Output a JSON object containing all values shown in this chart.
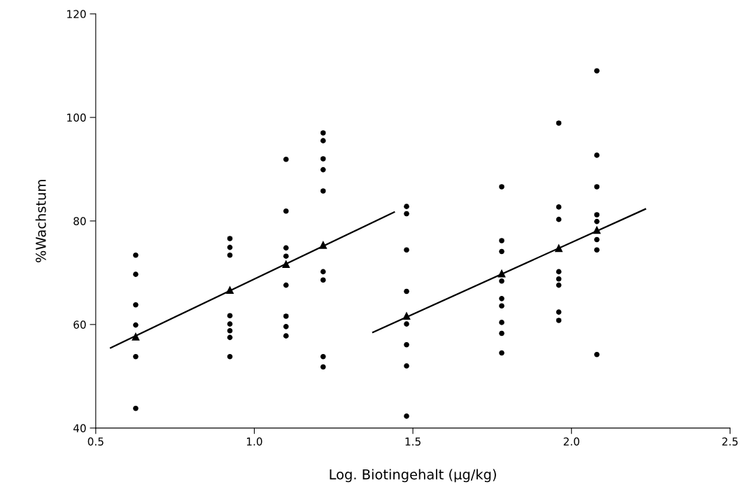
{
  "chart_data": {
    "type": "scatter",
    "xlabel": "Log. Biotingehalt (µg/kg)",
    "ylabel": "%Wachstum",
    "xlim": [
      0.5,
      2.5
    ],
    "xticks": [
      0.5,
      {
        "value": 1,
        "label": "1.0"
      },
      1.5,
      {
        "value": 2,
        "label": "2.0"
      },
      2.5
    ],
    "ylim": [
      40,
      120
    ],
    "yticks": [
      40,
      60,
      80,
      100,
      120
    ],
    "grid": false,
    "legend": false,
    "series": [
      {
        "marker": "circle",
        "color": "#000000",
        "x": [
          0.626,
          0.626,
          0.626,
          0.626,
          0.626,
          0.626,
          0.923,
          0.923,
          0.923,
          0.923,
          0.923,
          0.923,
          0.923,
          0.923,
          1.1,
          1.1,
          1.1,
          1.1,
          1.1,
          1.1,
          1.1,
          1.1,
          1.217,
          1.217,
          1.217,
          1.217,
          1.217,
          1.217,
          1.217,
          1.217,
          1.217,
          1.48,
          1.48,
          1.48,
          1.48,
          1.48,
          1.48,
          1.48,
          1.48,
          1.78,
          1.78,
          1.78,
          1.78,
          1.78,
          1.78,
          1.78,
          1.78,
          1.78,
          1.96,
          1.96,
          1.96,
          1.96,
          1.96,
          1.96,
          1.96,
          1.96,
          2.08,
          2.08,
          2.08,
          2.08,
          2.08,
          2.08,
          2.08,
          2.08
        ],
        "values": [
          73.4,
          69.7,
          63.8,
          59.9,
          53.8,
          43.8,
          76.6,
          74.9,
          73.4,
          61.7,
          60.1,
          58.8,
          57.5,
          53.8,
          91.9,
          81.9,
          74.8,
          73.2,
          67.6,
          61.6,
          59.6,
          57.8,
          97.0,
          95.5,
          92.0,
          89.9,
          85.8,
          70.2,
          68.6,
          53.8,
          51.8,
          82.8,
          81.4,
          74.4,
          66.4,
          60.1,
          56.1,
          52.0,
          42.3,
          86.6,
          76.2,
          74.1,
          68.4,
          65.0,
          63.6,
          60.4,
          58.3,
          54.5,
          98.9,
          82.7,
          80.3,
          70.2,
          68.8,
          67.6,
          62.4,
          60.8,
          109.0,
          92.7,
          86.6,
          81.2,
          79.9,
          76.4,
          74.4,
          54.2
        ]
      },
      {
        "type": "line",
        "marker": "none",
        "line_style": "solid",
        "color": "#000000",
        "x": [
          0.547,
          1.441
        ],
        "values": [
          55.5,
          81.7
        ]
      },
      {
        "type": "line",
        "marker": "none",
        "line_style": "solid",
        "color": "#000000",
        "x": [
          1.374,
          2.233
        ],
        "values": [
          58.5,
          82.3
        ]
      },
      {
        "marker": "triangle",
        "color": "#000000",
        "x": [
          0.626,
          0.923,
          1.1,
          1.217,
          1.48,
          1.78,
          1.96,
          2.08
        ],
        "values": [
          57.7,
          66.7,
          71.7,
          75.4,
          61.7,
          69.9,
          74.8,
          78.3
        ]
      }
    ]
  }
}
